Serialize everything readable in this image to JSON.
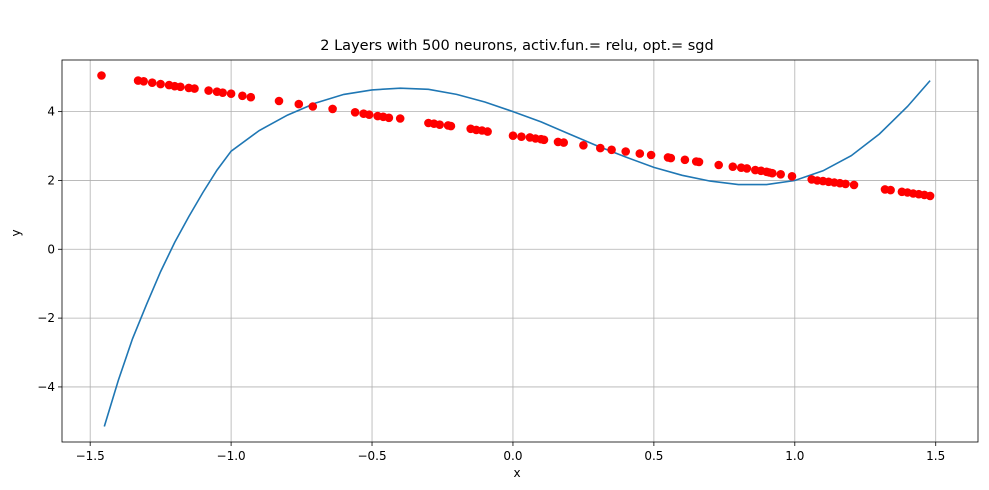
{
  "chart_data": {
    "type": "scatter",
    "title": "2 Layers with 500 neurons, activ.fun.= relu, opt.= sgd",
    "xlabel": "x",
    "ylabel": "y",
    "xlim": [
      -1.6,
      1.65
    ],
    "ylim": [
      -5.6,
      5.5
    ],
    "xticks": [
      -1.5,
      -1.0,
      -0.5,
      0.0,
      0.5,
      1.0,
      1.5
    ],
    "xtick_labels": [
      "−1.5",
      "−1.0",
      "−0.5",
      "0.0",
      "0.5",
      "1.0",
      "1.5"
    ],
    "yticks": [
      -4,
      -2,
      0,
      2,
      4
    ],
    "ytick_labels": [
      "−4",
      "−2",
      "0",
      "2",
      "4"
    ],
    "grid": true,
    "colors": {
      "points": "#ff0000",
      "line": "#1f77b4",
      "grid": "#b0b0b0"
    },
    "series": [
      {
        "kind": "scatter",
        "x": [
          -1.46,
          -1.33,
          -1.31,
          -1.28,
          -1.25,
          -1.22,
          -1.2,
          -1.18,
          -1.15,
          -1.13,
          -1.08,
          -1.05,
          -1.03,
          -1.0,
          -0.96,
          -0.93,
          -0.83,
          -0.76,
          -0.71,
          -0.64,
          -0.56,
          -0.53,
          -0.51,
          -0.48,
          -0.46,
          -0.44,
          -0.4,
          -0.3,
          -0.28,
          -0.26,
          -0.23,
          -0.22,
          -0.15,
          -0.13,
          -0.11,
          -0.09,
          0.0,
          0.03,
          0.06,
          0.08,
          0.1,
          0.11,
          0.16,
          0.18,
          0.25,
          0.31,
          0.35,
          0.4,
          0.45,
          0.49,
          0.55,
          0.56,
          0.61,
          0.65,
          0.66,
          0.73,
          0.78,
          0.81,
          0.83,
          0.86,
          0.88,
          0.9,
          0.91,
          0.92,
          0.95,
          0.99,
          1.06,
          1.08,
          1.1,
          1.12,
          1.14,
          1.16,
          1.18,
          1.21,
          1.32,
          1.34,
          1.38,
          1.4,
          1.42,
          1.44,
          1.46,
          1.48
        ],
        "y": [
          5.05,
          4.9,
          4.88,
          4.84,
          4.8,
          4.77,
          4.74,
          4.72,
          4.69,
          4.67,
          4.61,
          4.58,
          4.55,
          4.52,
          4.46,
          4.42,
          4.31,
          4.22,
          4.15,
          4.08,
          3.98,
          3.94,
          3.91,
          3.87,
          3.85,
          3.82,
          3.8,
          3.67,
          3.65,
          3.62,
          3.6,
          3.58,
          3.5,
          3.47,
          3.45,
          3.42,
          3.3,
          3.27,
          3.25,
          3.22,
          3.2,
          3.18,
          3.12,
          3.1,
          3.02,
          2.94,
          2.89,
          2.84,
          2.78,
          2.74,
          2.67,
          2.65,
          2.6,
          2.55,
          2.54,
          2.45,
          2.4,
          2.37,
          2.35,
          2.3,
          2.28,
          2.25,
          2.23,
          2.21,
          2.18,
          2.12,
          2.03,
          2.0,
          1.98,
          1.96,
          1.94,
          1.92,
          1.9,
          1.87,
          1.74,
          1.72,
          1.67,
          1.65,
          1.62,
          1.6,
          1.58,
          1.55
        ]
      },
      {
        "kind": "line",
        "x": [
          -1.45,
          -1.4,
          -1.35,
          -1.3,
          -1.25,
          -1.2,
          -1.15,
          -1.1,
          -1.05,
          -1.0,
          -0.9,
          -0.8,
          -0.7,
          -0.6,
          -0.5,
          -0.4,
          -0.3,
          -0.2,
          -0.1,
          0.0,
          0.1,
          0.2,
          0.3,
          0.4,
          0.5,
          0.6,
          0.7,
          0.8,
          0.9,
          1.0,
          1.1,
          1.2,
          1.3,
          1.4,
          1.48
        ],
        "y": [
          -5.15,
          -3.8,
          -2.6,
          -1.6,
          -0.65,
          0.2,
          0.95,
          1.65,
          2.3,
          2.85,
          3.45,
          3.9,
          4.25,
          4.5,
          4.63,
          4.68,
          4.65,
          4.5,
          4.28,
          4.0,
          3.7,
          3.35,
          3.0,
          2.68,
          2.38,
          2.15,
          1.98,
          1.88,
          1.88,
          2.0,
          2.28,
          2.72,
          3.35,
          4.15,
          4.9
        ]
      }
    ]
  }
}
